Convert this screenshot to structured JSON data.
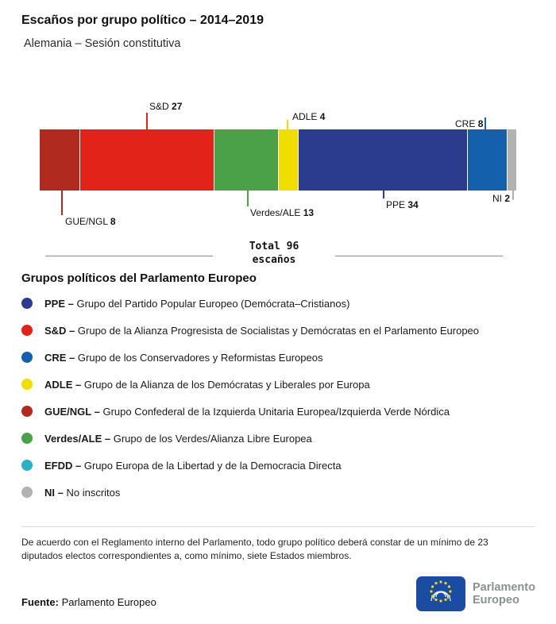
{
  "chart_data": {
    "type": "bar",
    "stacked": true,
    "orientation": "horizontal",
    "title": "Escaños por grupo político – 2014–2019",
    "subtitle": "Alemania – Sesión constitutiva",
    "total_label": "Total",
    "total": 96,
    "total_unit": "escaños",
    "groups": [
      {
        "abbr": "GUE/NGL",
        "seats": 8,
        "color": "#B12A1F"
      },
      {
        "abbr": "S&D",
        "seats": 27,
        "color": "#E2231A"
      },
      {
        "abbr": "Verdes/ALE",
        "seats": 13,
        "color": "#4AA147"
      },
      {
        "abbr": "ADLE",
        "seats": 4,
        "color": "#F0DE00"
      },
      {
        "abbr": "PPE",
        "seats": 34,
        "color": "#2B3B8D"
      },
      {
        "abbr": "CRE",
        "seats": 8,
        "color": "#1560AC"
      },
      {
        "abbr": "NI",
        "seats": 2,
        "color": "#B2B2B2"
      }
    ]
  },
  "legend": {
    "heading": "Grupos políticos del Parlamento Europeo",
    "items": [
      {
        "abbr": "PPE",
        "color": "#2B3B8D",
        "description": "Grupo del Partido Popular Europeo (Demócrata–Cristianos)"
      },
      {
        "abbr": "S&D",
        "color": "#E2231A",
        "description": "Grupo de la Alianza Progresista de Socialistas y Demócratas en el Parlamento Europeo"
      },
      {
        "abbr": "CRE",
        "color": "#1560AC",
        "description": "Grupo de los Conservadores y Reformistas Europeos"
      },
      {
        "abbr": "ADLE",
        "color": "#F0DE00",
        "description": "Grupo de la Alianza de los Demócratas y Liberales por Europa"
      },
      {
        "abbr": "GUE/NGL",
        "color": "#B12A1F",
        "description": "Grupo Confederal de la Izquierda Unitaria Europea/Izquierda Verde Nórdica"
      },
      {
        "abbr": "Verdes/ALE",
        "color": "#4AA147",
        "description": "Grupo de los Verdes/Alianza Libre Europea"
      },
      {
        "abbr": "EFDD",
        "color": "#29B2C4",
        "description": "Grupo Europa de la Libertad y de la Democracia Directa"
      },
      {
        "abbr": "NI",
        "color": "#B2B2B2",
        "description": "No inscritos"
      }
    ]
  },
  "footnote": "De acuerdo con el Reglamento interno del Parlamento, todo grupo político deberá constar de un mínimo de 23 diputados electos correspondientes a, como mínimo, siete Estados miembros.",
  "source": {
    "label": "Fuente:",
    "value": "Parlamento Europeo"
  },
  "logo": {
    "line1": "Parlamento",
    "line2": "Europeo"
  }
}
